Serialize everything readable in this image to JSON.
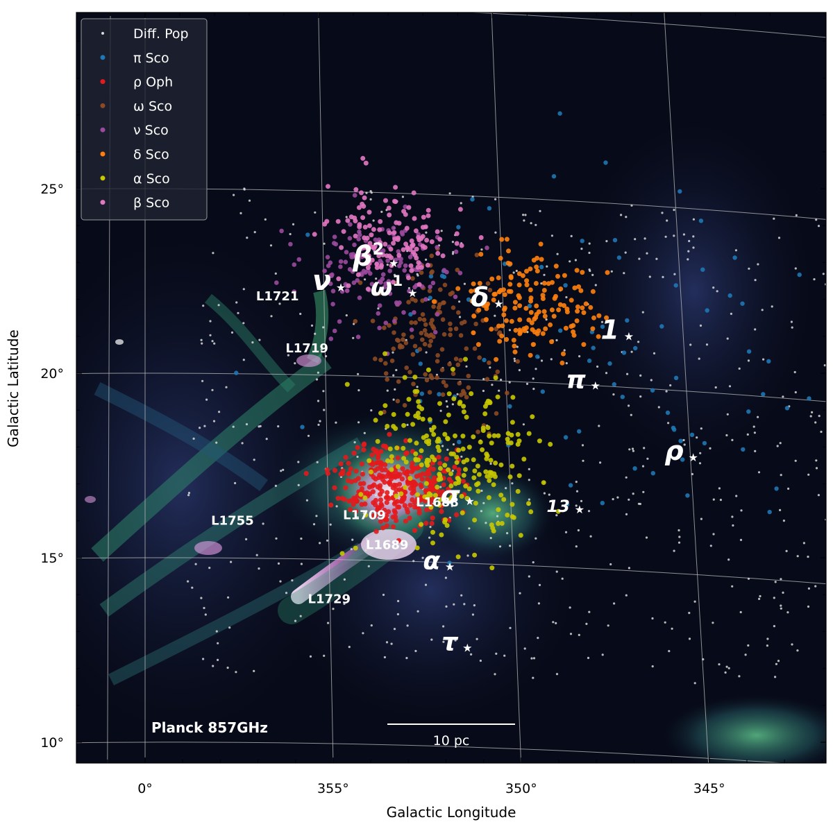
{
  "chart_data": {
    "type": "scatter",
    "background_map": "Planck 857GHz",
    "xlabel": "Galactic Longitude",
    "ylabel": "Galactic Latitude",
    "xlim": [
      2.0,
      341.5
    ],
    "ylim": [
      9.5,
      29.8
    ],
    "x_ticks": [
      {
        "value": 0,
        "label": "0°"
      },
      {
        "value": 355,
        "label": "355°"
      },
      {
        "value": 350,
        "label": "350°"
      },
      {
        "value": 345,
        "label": "345°"
      }
    ],
    "y_ticks": [
      {
        "value": 10,
        "label": "10°"
      },
      {
        "value": 15,
        "label": "15°"
      },
      {
        "value": 20,
        "label": "20°"
      },
      {
        "value": 25,
        "label": "25°"
      }
    ],
    "grid": true,
    "legend_position": "top-left",
    "scale_bar": {
      "label": "10 pc"
    },
    "series": [
      {
        "name": "Diff. Pop",
        "color": "#d9d9d9",
        "marker_size": 1.6,
        "center": [
          349.5,
          18.5
        ],
        "spread": [
          8.5,
          6.0
        ],
        "count": 620,
        "seed": 11
      },
      {
        "name": "π Sco",
        "color": "#1f77b4",
        "marker_size": 3.2,
        "center": [
          348.0,
          20.6
        ],
        "spread": [
          3.5,
          2.2
        ],
        "count": 90,
        "seed": 23
      },
      {
        "name": "ρ Oph",
        "color": "#e41a1c",
        "marker_size": 3.6,
        "center": [
          353.1,
          17.1
        ],
        "spread": [
          0.8,
          0.55
        ],
        "count": 320,
        "seed": 37
      },
      {
        "name": "ω Sco",
        "color": "#8c4a24",
        "marker_size": 3.3,
        "center": [
          351.8,
          21.1
        ],
        "spread": [
          1.0,
          1.0
        ],
        "count": 150,
        "seed": 41
      },
      {
        "name": "ν Sco",
        "color": "#9b4a9e",
        "marker_size": 3.3,
        "center": [
          353.4,
          22.9
        ],
        "spread": [
          1.1,
          0.8
        ],
        "count": 150,
        "seed": 53
      },
      {
        "name": "δ Sco",
        "color": "#ff7f0e",
        "marker_size": 3.5,
        "center": [
          349.3,
          22.0
        ],
        "spread": [
          0.9,
          0.7
        ],
        "count": 150,
        "seed": 67
      },
      {
        "name": "α Sco",
        "color": "#c8c800",
        "marker_size": 3.5,
        "center": [
          351.5,
          17.8
        ],
        "spread": [
          1.3,
          1.2
        ],
        "count": 230,
        "seed": 71
      },
      {
        "name": "β Sco",
        "color": "#e377c2",
        "marker_size": 3.5,
        "center": [
          353.0,
          23.8
        ],
        "spread": [
          0.9,
          0.7
        ],
        "count": 130,
        "seed": 89
      }
    ],
    "star_labels": [
      {
        "name": "β",
        "sup": "2",
        "lon": 353.1,
        "lat": 23.1,
        "size": 40
      },
      {
        "name": "ν",
        "sup": "",
        "lon": 354.6,
        "lat": 22.4,
        "size": 40
      },
      {
        "name": "ω",
        "sup": "1",
        "lon": 352.6,
        "lat": 22.3,
        "size": 36
      },
      {
        "name": "δ",
        "sup": "",
        "lon": 350.2,
        "lat": 22.1,
        "size": 38
      },
      {
        "name": "1",
        "sup": "",
        "lon": 346.6,
        "lat": 21.4,
        "size": 38
      },
      {
        "name": "π",
        "sup": "",
        "lon": 347.6,
        "lat": 20.0,
        "size": 36
      },
      {
        "name": "ρ",
        "sup": "",
        "lon": 345.0,
        "lat": 18.2,
        "size": 38
      },
      {
        "name": "σ",
        "sup": "",
        "lon": 351.2,
        "lat": 16.7,
        "size": 36
      },
      {
        "name": "13",
        "sup": "",
        "lon": 348.2,
        "lat": 16.6,
        "size": 24
      },
      {
        "name": "α",
        "sup": "",
        "lon": 351.8,
        "lat": 14.9,
        "size": 36
      },
      {
        "name": "τ",
        "sup": "",
        "lon": 351.4,
        "lat": 12.7,
        "size": 36
      }
    ],
    "cloud_labels": [
      {
        "name": "L1721",
        "lon": 356.9,
        "lat": 22.0
      },
      {
        "name": "L1719",
        "lon": 356.1,
        "lat": 20.6
      },
      {
        "name": "L1755",
        "lon": 358.2,
        "lat": 15.9
      },
      {
        "name": "L1709",
        "lon": 354.6,
        "lat": 16.1
      },
      {
        "name": "L1688",
        "lon": 352.6,
        "lat": 16.5
      },
      {
        "name": "L1689",
        "lon": 354.0,
        "lat": 15.3
      },
      {
        "name": "L1729",
        "lon": 355.6,
        "lat": 13.8
      }
    ]
  }
}
